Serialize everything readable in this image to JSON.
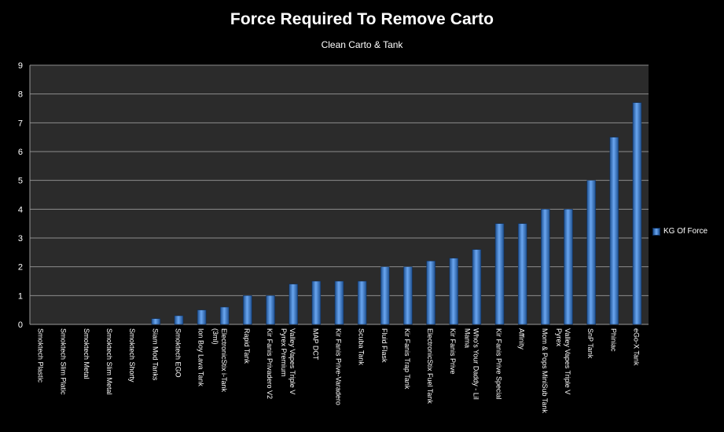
{
  "chart_data": {
    "type": "bar",
    "title": "Force Required To Remove Carto",
    "subtitle": "Clean Carto & Tank",
    "xlabel": "",
    "ylabel": "",
    "ylim": [
      0,
      9
    ],
    "yticks": [
      "0",
      "1",
      "2",
      "3",
      "4",
      "5",
      "6",
      "7",
      "8",
      "9"
    ],
    "grid": true,
    "legend_position": "right",
    "categories": [
      "Smoktech Plastic",
      "Smoktech Slim Platic",
      "Smoktech Metal",
      "Smoktech Slim Metal",
      "Smoktech Shorty",
      "Siam Mod Tanks",
      "Smoktech EGO",
      "Ion Boy Lava Tank",
      "ElectronicStix i-Tank (3ml)",
      "Rapid Tank",
      "Kir Fanis Privadero V2",
      "Valley Vapes Triple V Pyrex Premium",
      "MAP DCT",
      "Kir Fanis Prive-Varadero",
      "Scuba Tank",
      "Fluid Flask",
      "Kir Fanis Trap Tank",
      "ElectronicStix Fuel Tank",
      "Kir Fanis Prive",
      "Who's Your Daddy - Lil Mama",
      "Kir Fanis Prive Special",
      "Affinity",
      "Mom & Pops MiniSub Tank",
      "Valley Vapes Triple V Pyrex",
      "SnP Tank",
      "Phiniac",
      "eGo-X Tank"
    ],
    "series": [
      {
        "name": "KG Of Force",
        "values": [
          0,
          0,
          0,
          0,
          0,
          0.2,
          0.3,
          0.5,
          0.6,
          1,
          1,
          1.4,
          1.5,
          1.5,
          1.5,
          2,
          2,
          2.2,
          2.3,
          2.6,
          3.5,
          3.5,
          4,
          4,
          5,
          6.5,
          7.7
        ]
      }
    ],
    "colors": {
      "background": "#000000",
      "plot_area": "#2b2b2b",
      "bar_light": "#6aa6f0",
      "bar_dark": "#1d4f8f",
      "gridline": "#8c8c8c"
    }
  }
}
